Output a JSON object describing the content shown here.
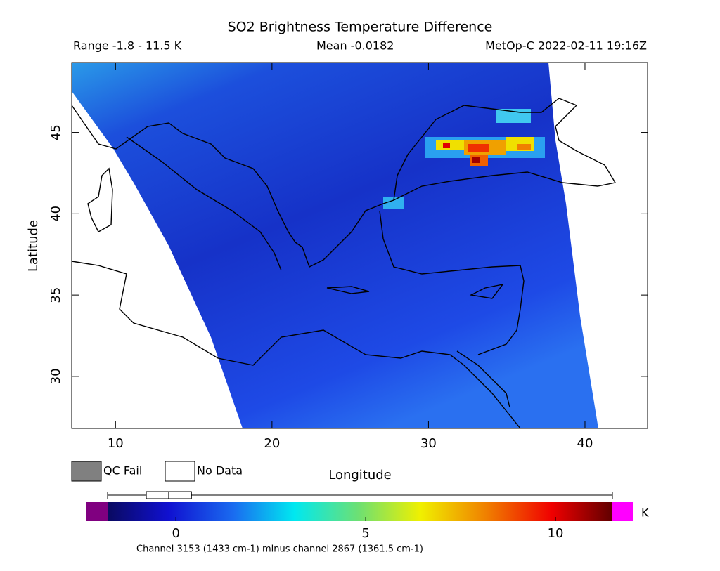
{
  "header": {
    "title": "SO2 Brightness Temperature Difference",
    "range": "Range -1.8 - 11.5 K",
    "mean": "Mean -0.0182",
    "source": "MetOp-C 2022-02-11 19:16Z"
  },
  "chart_data": {
    "type": "map",
    "x_label": "Longitude",
    "y_label": "Latitude",
    "xlim": [
      7.2,
      44
    ],
    "ylim": [
      26.8,
      49.3
    ],
    "xticks": [
      10,
      20,
      30,
      40
    ],
    "yticks": [
      30,
      35,
      40,
      45
    ]
  },
  "legend": {
    "items": [
      {
        "label": "QC Fail",
        "color": "#808080"
      },
      {
        "label": "No Data",
        "color": "#ffffff"
      }
    ]
  },
  "colorbar": {
    "unit": "K",
    "lim": [
      -1.8,
      11.5
    ],
    "ticks": [
      0,
      5,
      10
    ],
    "box": {
      "min": -1.8,
      "q1": -0.78,
      "median": -0.19,
      "q3": 0.41,
      "max": 11.5
    }
  },
  "footer": "Channel 3153 (1433 cm-1) minus channel 2867 (1361.5 cm-1)"
}
